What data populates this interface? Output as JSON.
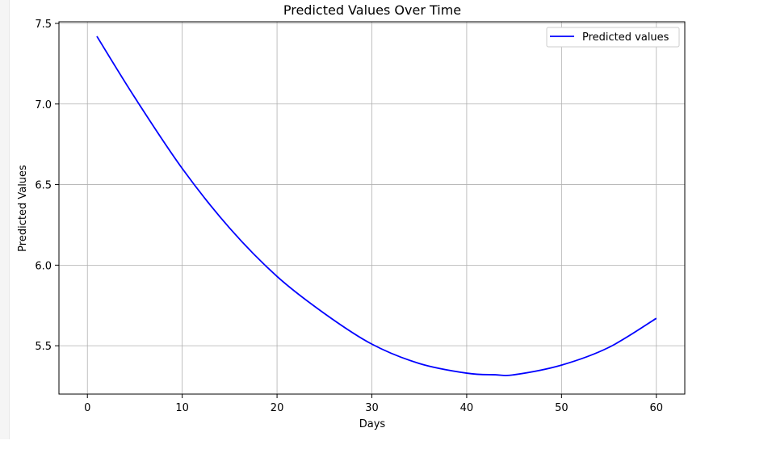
{
  "chart_data": {
    "type": "line",
    "title": "Predicted Values Over Time",
    "xlabel": "Days",
    "ylabel": "Predicted Values",
    "xlim": [
      -3,
      63
    ],
    "ylim": [
      5.2,
      7.51
    ],
    "xticks": [
      0,
      10,
      20,
      30,
      40,
      50,
      60
    ],
    "yticks": [
      5.5,
      6.0,
      6.5,
      7.0,
      7.5
    ],
    "xtick_labels": [
      "0",
      "10",
      "20",
      "30",
      "40",
      "50",
      "60"
    ],
    "ytick_labels": [
      "5.5",
      "6.0",
      "6.5",
      "7.0",
      "7.5"
    ],
    "grid": true,
    "legend_position": "top-right",
    "series": [
      {
        "name": "Predicted values",
        "color": "#0000ff",
        "x": [
          1,
          5,
          10,
          15,
          20,
          25,
          30,
          35,
          40,
          43,
          45,
          50,
          55,
          60
        ],
        "values": [
          7.42,
          7.04,
          6.6,
          6.23,
          5.93,
          5.7,
          5.51,
          5.39,
          5.33,
          5.32,
          5.32,
          5.38,
          5.49,
          5.67
        ]
      }
    ]
  }
}
